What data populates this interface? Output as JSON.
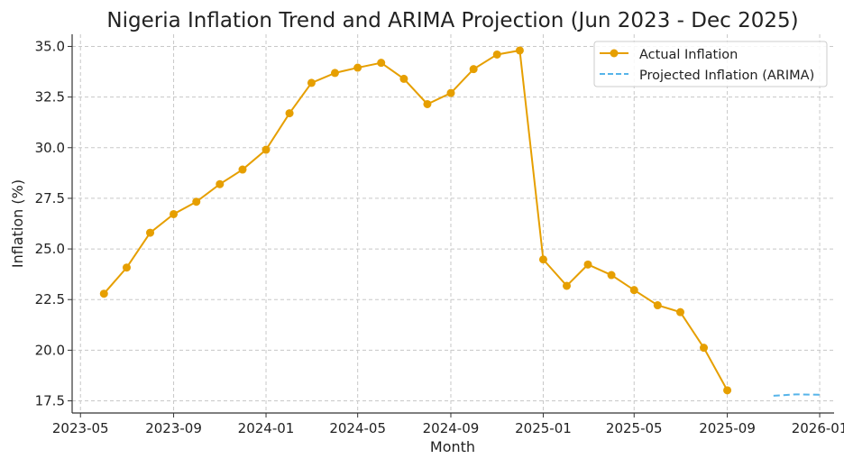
{
  "chart_data": {
    "type": "line",
    "title": "Nigeria Inflation Trend and ARIMA Projection (Jun 2023 - Dec 2025)",
    "xlabel": "Month",
    "ylabel": "Inflation (%)",
    "xlim": [
      "2023-04-20",
      "2026-01-20"
    ],
    "ylim": [
      16.9,
      35.6
    ],
    "xticks": [
      "2023-05",
      "2023-09",
      "2024-01",
      "2024-05",
      "2024-09",
      "2025-01",
      "2025-05",
      "2025-09",
      "2026-01"
    ],
    "yticks": [
      17.5,
      20.0,
      22.5,
      25.0,
      27.5,
      30.0,
      32.5,
      35.0
    ],
    "grid": true,
    "legend_position": "top-right",
    "series": [
      {
        "name": "Actual Inflation",
        "color": "#E69F00",
        "style": "solid-markers",
        "x": [
          "2023-06",
          "2023-07",
          "2023-08",
          "2023-09",
          "2023-10",
          "2023-11",
          "2023-12",
          "2024-01",
          "2024-02",
          "2024-03",
          "2024-04",
          "2024-05",
          "2024-06",
          "2024-07",
          "2024-08",
          "2024-09",
          "2024-10",
          "2024-11",
          "2024-12",
          "2025-01",
          "2025-02",
          "2025-03",
          "2025-04",
          "2025-05",
          "2025-06",
          "2025-07",
          "2025-08",
          "2025-09"
        ],
        "values": [
          22.79,
          24.08,
          25.8,
          26.72,
          27.33,
          28.2,
          28.92,
          29.9,
          31.7,
          33.2,
          33.69,
          33.95,
          34.19,
          33.4,
          32.15,
          32.7,
          33.88,
          34.6,
          34.8,
          24.48,
          23.18,
          24.23,
          23.71,
          22.97,
          22.22,
          21.88,
          20.12,
          18.02
        ]
      },
      {
        "name": "Projected Inflation (ARIMA)",
        "color": "#56B4E9",
        "style": "dashed",
        "x": [
          "2025-11",
          "2025-12",
          "2026-01"
        ],
        "values": [
          17.75,
          17.82,
          17.8
        ]
      }
    ]
  }
}
